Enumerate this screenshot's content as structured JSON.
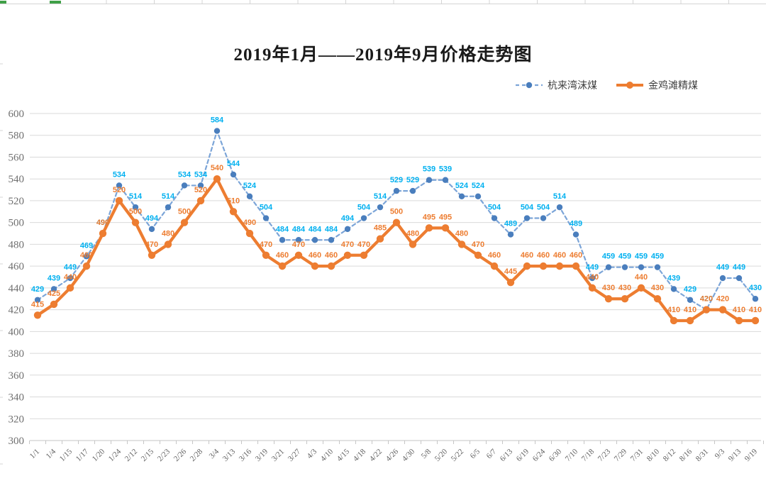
{
  "title": "2019年1月——2019年9月价格走势图",
  "chart_data": {
    "type": "line",
    "title": "2019年1月——2019年9月价格走势图",
    "categories": [
      "1/1",
      "1/4",
      "1/15",
      "1/17",
      "1/20",
      "1/24",
      "2/12",
      "2/15",
      "2/23",
      "2/26",
      "2/28",
      "3/4",
      "3/13",
      "3/16",
      "3/19",
      "3/21",
      "3/27",
      "4/3",
      "4/10",
      "4/15",
      "4/18",
      "4/22",
      "4/26",
      "4/30",
      "5/8",
      "5/20",
      "5/22",
      "6/5",
      "6/7",
      "6/13",
      "6/19",
      "6/24",
      "6/30",
      "7/10",
      "7/18",
      "7/23",
      "7/29",
      "7/31",
      "8/10",
      "8/12",
      "8/16",
      "8/31",
      "9/3",
      "9/13",
      "9/19"
    ],
    "series": [
      {
        "name": "杭来湾沫煤",
        "style": "dashed",
        "line_color": "#7CA5D8",
        "marker_color": "#4A7EBD",
        "label_color": "#00B0F0",
        "values": [
          429,
          439,
          449,
          469,
          490,
          534,
          514,
          494,
          514,
          534,
          534,
          584,
          544,
          524,
          504,
          484,
          484,
          484,
          484,
          494,
          504,
          514,
          529,
          529,
          539,
          539,
          524,
          524,
          504,
          489,
          504,
          504,
          514,
          489,
          449,
          459,
          459,
          459,
          459,
          439,
          429,
          420,
          449,
          449,
          430
        ]
      },
      {
        "name": "金鸡滩精煤",
        "style": "solid",
        "line_color": "#ED7D31",
        "marker_color": "#ED7D31",
        "label_color": "#ED7D31",
        "values": [
          415,
          425,
          440,
          460,
          490,
          520,
          500,
          470,
          480,
          500,
          520,
          540,
          510,
          490,
          470,
          460,
          470,
          460,
          460,
          470,
          470,
          485,
          500,
          480,
          495,
          495,
          480,
          470,
          460,
          445,
          460,
          460,
          460,
          460,
          440,
          430,
          430,
          440,
          430,
          410,
          410,
          420,
          420,
          410,
          410
        ]
      }
    ],
    "xlabel": "",
    "ylabel": "",
    "ylim": [
      300,
      600
    ],
    "ytick_step": 20,
    "grid": true,
    "legend_position": "top-right",
    "data_labels": true
  },
  "palette": {
    "gridline": "#D9D9D9",
    "axis": "#C6C6C6",
    "edge_marks": "#D4D4D4",
    "selection_green": "#3FA047"
  }
}
